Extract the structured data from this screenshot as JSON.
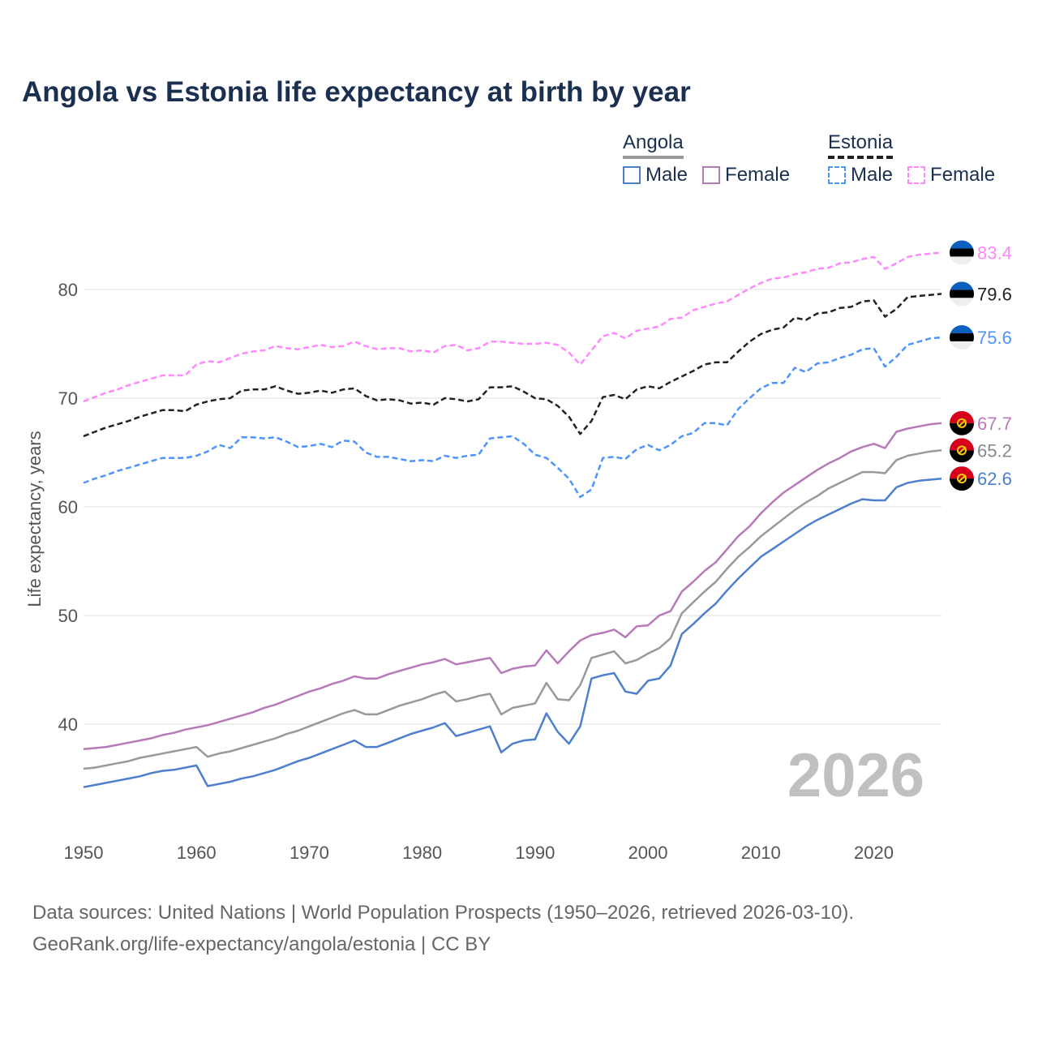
{
  "chart_data": {
    "type": "line",
    "title": "Angola vs Estonia life expectancy at birth by year",
    "xlabel": "",
    "ylabel": "Life expectancy, years",
    "xlim": [
      1950,
      2026
    ],
    "ylim": [
      30,
      85
    ],
    "x_ticks": [
      "1950",
      "1960",
      "1970",
      "1980",
      "1990",
      "2000",
      "2010",
      "2020"
    ],
    "y_ticks": [
      "40",
      "50",
      "60",
      "70",
      "80"
    ],
    "grid": true,
    "watermark_year": "2026",
    "legend": {
      "placement": "top-right",
      "groups": [
        {
          "country": "Angola",
          "items": [
            "Male",
            "Female"
          ]
        },
        {
          "country": "Estonia",
          "items": [
            "Male",
            "Female"
          ]
        }
      ]
    },
    "x_start": 1950,
    "series": [
      {
        "name": "Estonia Female",
        "country": "Estonia",
        "color": "#ff88ff",
        "dashed": true,
        "end_label": "83.4",
        "values": [
          69.7,
          70.1,
          70.5,
          70.8,
          71.2,
          71.5,
          71.8,
          72.1,
          72.1,
          72.1,
          73.1,
          73.4,
          73.3,
          73.7,
          74.1,
          74.3,
          74.4,
          74.8,
          74.6,
          74.5,
          74.7,
          74.9,
          74.7,
          74.8,
          75.2,
          74.8,
          74.5,
          74.6,
          74.6,
          74.3,
          74.4,
          74.2,
          74.8,
          74.9,
          74.4,
          74.6,
          75.2,
          75.2,
          75.1,
          75.0,
          75.0,
          75.1,
          74.9,
          74.2,
          73.1,
          74.4,
          75.7,
          76.0,
          75.5,
          76.2,
          76.4,
          76.6,
          77.3,
          77.4,
          78.1,
          78.4,
          78.7,
          78.9,
          79.5,
          80.1,
          80.6,
          81.0,
          81.1,
          81.4,
          81.6,
          81.9,
          82.0,
          82.4,
          82.5,
          82.8,
          83.0,
          81.9,
          82.4,
          83.0,
          83.2,
          83.3,
          83.4
        ]
      },
      {
        "name": "Estonia Total",
        "country": "Estonia",
        "color": "#222222",
        "dashed": true,
        "end_label": "79.6",
        "values": [
          66.5,
          66.9,
          67.3,
          67.6,
          67.9,
          68.3,
          68.6,
          68.9,
          68.9,
          68.8,
          69.4,
          69.7,
          69.9,
          70.0,
          70.7,
          70.8,
          70.8,
          71.1,
          70.7,
          70.4,
          70.5,
          70.7,
          70.5,
          70.8,
          70.9,
          70.2,
          69.8,
          69.9,
          69.8,
          69.5,
          69.6,
          69.4,
          70.0,
          69.9,
          69.7,
          69.9,
          71.0,
          71.0,
          71.1,
          70.6,
          70.0,
          69.9,
          69.3,
          68.3,
          66.7,
          67.9,
          70.1,
          70.3,
          69.9,
          70.8,
          71.1,
          70.9,
          71.5,
          72.0,
          72.5,
          73.1,
          73.3,
          73.3,
          74.3,
          75.2,
          75.9,
          76.3,
          76.5,
          77.4,
          77.2,
          77.8,
          77.9,
          78.3,
          78.4,
          78.9,
          79.0,
          77.5,
          78.2,
          79.3,
          79.4,
          79.5,
          79.6
        ]
      },
      {
        "name": "Estonia Male",
        "country": "Estonia",
        "color": "#4d94ff",
        "dashed": true,
        "end_label": "75.6",
        "values": [
          62.2,
          62.6,
          62.9,
          63.3,
          63.6,
          63.9,
          64.2,
          64.5,
          64.5,
          64.5,
          64.7,
          65.1,
          65.7,
          65.4,
          66.4,
          66.4,
          66.3,
          66.4,
          66.0,
          65.5,
          65.6,
          65.8,
          65.5,
          66.1,
          66.0,
          65.0,
          64.6,
          64.6,
          64.4,
          64.2,
          64.3,
          64.2,
          64.7,
          64.5,
          64.7,
          64.8,
          66.3,
          66.4,
          66.5,
          65.8,
          64.8,
          64.5,
          63.6,
          62.6,
          60.9,
          61.6,
          64.5,
          64.6,
          64.4,
          65.3,
          65.7,
          65.2,
          65.7,
          66.5,
          66.8,
          67.7,
          67.7,
          67.5,
          69.0,
          70.0,
          70.9,
          71.4,
          71.4,
          72.8,
          72.4,
          73.2,
          73.3,
          73.7,
          74.0,
          74.5,
          74.6,
          72.9,
          73.8,
          74.9,
          75.2,
          75.5,
          75.6
        ]
      },
      {
        "name": "Angola Female",
        "country": "Angola",
        "color": "#b77ab8",
        "dashed": false,
        "end_label": "67.7",
        "values": [
          37.7,
          37.8,
          37.9,
          38.1,
          38.3,
          38.5,
          38.7,
          39.0,
          39.2,
          39.5,
          39.7,
          39.9,
          40.2,
          40.5,
          40.8,
          41.1,
          41.5,
          41.8,
          42.2,
          42.6,
          43.0,
          43.3,
          43.7,
          44.0,
          44.4,
          44.2,
          44.2,
          44.6,
          44.9,
          45.2,
          45.5,
          45.7,
          46.0,
          45.5,
          45.7,
          45.9,
          46.1,
          44.7,
          45.1,
          45.3,
          45.4,
          46.8,
          45.6,
          46.7,
          47.7,
          48.2,
          48.4,
          48.7,
          48.0,
          49.0,
          49.1,
          50.0,
          50.4,
          52.2,
          53.1,
          54.1,
          54.9,
          56.1,
          57.3,
          58.2,
          59.4,
          60.4,
          61.3,
          62.0,
          62.7,
          63.4,
          64.0,
          64.5,
          65.1,
          65.5,
          65.8,
          65.4,
          66.9,
          67.2,
          67.4,
          67.6,
          67.7
        ]
      },
      {
        "name": "Angola Total",
        "country": "Angola",
        "color": "#999999",
        "dashed": false,
        "end_label": "65.2",
        "values": [
          35.9,
          36.0,
          36.2,
          36.4,
          36.6,
          36.9,
          37.1,
          37.3,
          37.5,
          37.7,
          37.9,
          37.0,
          37.3,
          37.5,
          37.8,
          38.1,
          38.4,
          38.7,
          39.1,
          39.4,
          39.8,
          40.2,
          40.6,
          41.0,
          41.3,
          40.9,
          40.9,
          41.3,
          41.7,
          42.0,
          42.3,
          42.7,
          43.0,
          42.1,
          42.3,
          42.6,
          42.8,
          40.9,
          41.5,
          41.7,
          41.9,
          43.8,
          42.3,
          42.2,
          43.6,
          46.1,
          46.4,
          46.7,
          45.6,
          45.9,
          46.5,
          47.0,
          47.9,
          50.2,
          51.2,
          52.2,
          53.1,
          54.3,
          55.4,
          56.3,
          57.3,
          58.1,
          58.9,
          59.7,
          60.4,
          61.0,
          61.7,
          62.2,
          62.7,
          63.2,
          63.2,
          63.1,
          64.3,
          64.7,
          64.9,
          65.1,
          65.2
        ]
      },
      {
        "name": "Angola Male",
        "country": "Angola",
        "color": "#4e7fcf",
        "dashed": false,
        "end_label": "62.6",
        "values": [
          34.2,
          34.4,
          34.6,
          34.8,
          35.0,
          35.2,
          35.5,
          35.7,
          35.8,
          36.0,
          36.2,
          34.3,
          34.5,
          34.7,
          35.0,
          35.2,
          35.5,
          35.8,
          36.2,
          36.6,
          36.9,
          37.3,
          37.7,
          38.1,
          38.5,
          37.9,
          37.9,
          38.3,
          38.7,
          39.1,
          39.4,
          39.7,
          40.1,
          38.9,
          39.2,
          39.5,
          39.8,
          37.4,
          38.2,
          38.5,
          38.6,
          41.0,
          39.3,
          38.2,
          39.8,
          44.2,
          44.5,
          44.7,
          43.0,
          42.8,
          44.0,
          44.2,
          45.4,
          48.3,
          49.2,
          50.2,
          51.1,
          52.3,
          53.4,
          54.4,
          55.4,
          56.1,
          56.8,
          57.5,
          58.2,
          58.8,
          59.3,
          59.8,
          60.3,
          60.7,
          60.6,
          60.6,
          61.8,
          62.2,
          62.4,
          62.5,
          62.6
        ]
      }
    ]
  },
  "source": {
    "line1": "Data sources: United Nations | World Population Prospects (1950–2026, retrieved 2026-03-10).",
    "line2": "GeoRank.org/life-expectancy/angola/estonia | CC BY"
  }
}
